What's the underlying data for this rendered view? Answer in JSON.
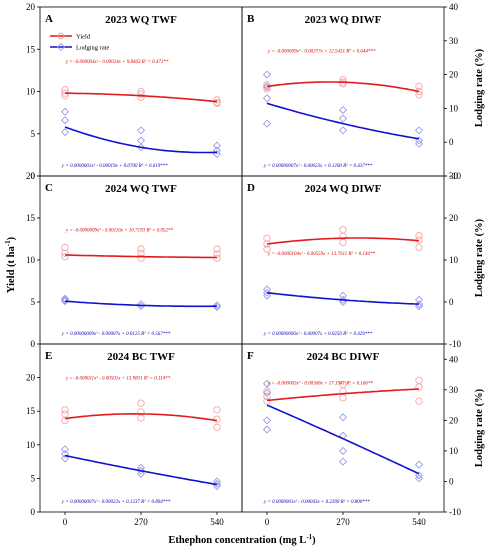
{
  "figure": {
    "xlabel": "Ethephon concentration (mg L",
    "xlabel_sup": "-1",
    "xlabel_tail": ")",
    "ylabel_left": "Yield (t ha",
    "ylabel_left_sup": "-1",
    "ylabel_left_tail": ")",
    "ylabel_right": "Lodging rate (%)",
    "legend": [
      "Yield",
      "Lodging rate"
    ],
    "colors": {
      "yield": "#e31a1c",
      "yield_marker": "#f4a6a6",
      "lodging": "#1010d0",
      "lodging_marker": "#9a9ae8"
    }
  },
  "chart_data": [
    {
      "type": "line",
      "panel": "A",
      "title": "2023  WQ  TWF",
      "x_categories": [
        "0",
        "270",
        "540"
      ],
      "x": [
        0,
        270,
        540
      ],
      "yield_ylim": [
        0,
        20
      ],
      "yield_yticks": [
        "0",
        "5",
        "10",
        "15",
        "20"
      ],
      "lodging_ylim": [
        -10,
        40
      ],
      "lodging_yticks": [],
      "yield_points": [
        [
          0,
          10.2
        ],
        [
          0,
          9.8
        ],
        [
          0,
          9.5
        ],
        [
          270,
          10.0
        ],
        [
          270,
          9.7
        ],
        [
          270,
          9.3
        ],
        [
          540,
          9.0
        ],
        [
          540,
          8.7
        ],
        [
          540,
          8.6
        ]
      ],
      "yield_fit": [
        9.8,
        9.5,
        8.8
      ],
      "lodging_points": [
        [
          0,
          9.0
        ],
        [
          0,
          6.5
        ],
        [
          0,
          3.0
        ],
        [
          270,
          3.5
        ],
        [
          270,
          0.5
        ],
        [
          270,
          -1.5
        ],
        [
          540,
          -1.0
        ],
        [
          540,
          -2.5
        ],
        [
          540,
          -3.5
        ]
      ],
      "lodging_fit": [
        4.5,
        -1.5,
        -3.0
      ],
      "yield_eq": "y = -0.000004x² - 0.00024x + 9.8463   R² = 0.471**",
      "lodging_eq": "y = 0.0000001x² - 0.00019x + 0.0700   R² = 0.619***"
    },
    {
      "type": "line",
      "panel": "B",
      "title": "2023  WQ  DIWF",
      "x_categories": [
        "0",
        "270",
        "540"
      ],
      "x": [
        0,
        270,
        540
      ],
      "yield_ylim": [
        0,
        20
      ],
      "yield_yticks": [],
      "lodging_ylim": [
        -10,
        40
      ],
      "lodging_yticks": [
        "-10",
        "0",
        "10",
        "20",
        "30",
        "40"
      ],
      "yield_points": [
        [
          0,
          10.8
        ],
        [
          0,
          10.5
        ],
        [
          0,
          10.3
        ],
        [
          270,
          11.4
        ],
        [
          270,
          11.1
        ],
        [
          270,
          10.9
        ],
        [
          540,
          10.6
        ],
        [
          540,
          10.0
        ],
        [
          540,
          9.6
        ]
      ],
      "yield_fit": [
        10.6,
        11.1,
        10.0
      ],
      "lodging_points": [
        [
          0,
          20.0
        ],
        [
          0,
          16.5
        ],
        [
          0,
          13.0
        ],
        [
          0,
          5.5
        ],
        [
          270,
          9.5
        ],
        [
          270,
          7.0
        ],
        [
          270,
          3.5
        ],
        [
          540,
          3.5
        ],
        [
          540,
          0.5
        ],
        [
          540,
          -0.5
        ]
      ],
      "lodging_fit": [
        11.5,
        5.5,
        1.0
      ],
      "yield_eq": "y = -0.000009x² - 0.00377x + 12.5431   R² = 0.644***",
      "lodging_eq": "y = 0.00000007x² - 0.00023x + 0.1200   R² = 0.437***"
    },
    {
      "type": "line",
      "panel": "C",
      "title": "2024  WQ  TWF",
      "x_categories": [
        "0",
        "270",
        "540"
      ],
      "x": [
        0,
        270,
        540
      ],
      "yield_ylim": [
        0,
        20
      ],
      "yield_yticks": [
        "0",
        "5",
        "10",
        "15",
        "20"
      ],
      "lodging_ylim": [
        -10,
        30
      ],
      "lodging_yticks": [],
      "yield_points": [
        [
          0,
          11.5
        ],
        [
          0,
          10.8
        ],
        [
          0,
          10.4
        ],
        [
          270,
          11.3
        ],
        [
          270,
          10.8
        ],
        [
          270,
          10.2
        ],
        [
          540,
          11.3
        ],
        [
          540,
          10.7
        ],
        [
          540,
          10.2
        ]
      ],
      "yield_fit": [
        10.6,
        10.4,
        10.3
      ],
      "lodging_points": [
        [
          0,
          0.8
        ],
        [
          0,
          0.5
        ],
        [
          0,
          0.2
        ],
        [
          270,
          -0.5
        ],
        [
          270,
          -1.0
        ],
        [
          540,
          -0.8
        ],
        [
          540,
          -1.2
        ]
      ],
      "lodging_fit": [
        0.2,
        -0.8,
        -1.0
      ],
      "yield_eq": "y = -0.0000009x² - 0.00116x + 10.7193   R² = 0.052**",
      "lodging_eq": "y = 0.00000009x² - 0.00007x + 0.0125   R² = 0.567***"
    },
    {
      "type": "line",
      "panel": "D",
      "title": "2024  WQ  DIWF",
      "x_categories": [
        "0",
        "270",
        "540"
      ],
      "x": [
        0,
        270,
        540
      ],
      "yield_ylim": [
        0,
        20
      ],
      "yield_yticks": [],
      "lodging_ylim": [
        -10,
        30
      ],
      "lodging_yticks": [
        "-10",
        "0",
        "10",
        "20",
        "30"
      ],
      "yield_points": [
        [
          0,
          12.6
        ],
        [
          0,
          11.9
        ],
        [
          0,
          11.3
        ],
        [
          270,
          13.6
        ],
        [
          270,
          12.8
        ],
        [
          270,
          12.1
        ],
        [
          540,
          12.9
        ],
        [
          540,
          12.4
        ],
        [
          540,
          11.5
        ]
      ],
      "yield_fit": [
        11.9,
        12.6,
        12.3
      ],
      "lodging_points": [
        [
          0,
          3.0
        ],
        [
          0,
          2.2
        ],
        [
          0,
          1.5
        ],
        [
          270,
          1.5
        ],
        [
          270,
          0.5
        ],
        [
          270,
          0.0
        ],
        [
          540,
          0.5
        ],
        [
          540,
          -0.5
        ],
        [
          540,
          -1.0
        ]
      ],
      "lodging_fit": [
        2.2,
        0.5,
        -0.5
      ],
      "yield_eq": "y = -0.0000104x² - 0.00559x + 13.7611   R² = 0.146**",
      "lodging_eq": "y = 0.00000006x² - 0.00007x + 0.0250   R² = 0.429***"
    },
    {
      "type": "line",
      "panel": "E",
      "title": "2024  BC  TWF",
      "x_categories": [
        "0",
        "270",
        "540"
      ],
      "x": [
        0,
        270,
        540
      ],
      "yield_ylim": [
        0,
        25
      ],
      "yield_yticks": [
        "0",
        "5",
        "10",
        "15",
        "20"
      ],
      "lodging_ylim": [
        -10,
        45
      ],
      "lodging_yticks": [],
      "yield_points": [
        [
          0,
          15.2
        ],
        [
          0,
          14.6
        ],
        [
          0,
          13.6
        ],
        [
          270,
          16.2
        ],
        [
          270,
          14.9
        ],
        [
          270,
          14.0
        ],
        [
          540,
          15.2
        ],
        [
          540,
          13.8
        ],
        [
          540,
          12.6
        ]
      ],
      "yield_fit": [
        13.9,
        14.6,
        13.6
      ],
      "lodging_points": [
        [
          0,
          10.5
        ],
        [
          0,
          9.0
        ],
        [
          0,
          7.5
        ],
        [
          270,
          4.5
        ],
        [
          270,
          3.5
        ],
        [
          270,
          2.5
        ],
        [
          540,
          0.0
        ],
        [
          540,
          -0.8
        ],
        [
          540,
          -1.5
        ]
      ],
      "lodging_fit": [
        8.5,
        3.5,
        -1.0
      ],
      "yield_eq": "y = -0.000011x² - 0.00501x + 13.9831   R² = 0.114**",
      "lodging_eq": "y = 0.00000007x² - 0.00022x + 0.1237   R² = 0.894***"
    },
    {
      "type": "line",
      "panel": "F",
      "title": "2024  BC  DIWF",
      "x_categories": [
        "0",
        "270",
        "540"
      ],
      "x": [
        0,
        270,
        540
      ],
      "yield_ylim": [
        0,
        25
      ],
      "yield_yticks": [],
      "lodging_ylim": [
        -10,
        45
      ],
      "lodging_yticks": [
        "-10",
        "0",
        "10",
        "20",
        "30",
        "40"
      ],
      "yield_points": [
        [
          0,
          18.0
        ],
        [
          0,
          17.2
        ],
        [
          0,
          16.5
        ],
        [
          270,
          19.0
        ],
        [
          270,
          18.0
        ],
        [
          270,
          17.0
        ],
        [
          540,
          19.6
        ],
        [
          540,
          18.6
        ],
        [
          540,
          16.5
        ]
      ],
      "yield_fit": [
        16.6,
        17.6,
        18.3
      ],
      "lodging_points": [
        [
          0,
          32.0
        ],
        [
          0,
          29.0
        ],
        [
          0,
          20.0
        ],
        [
          0,
          17.0
        ],
        [
          270,
          21.0
        ],
        [
          270,
          15.0
        ],
        [
          270,
          10.0
        ],
        [
          270,
          6.5
        ],
        [
          540,
          5.5
        ],
        [
          540,
          2.0
        ],
        [
          540,
          1.0
        ]
      ],
      "lodging_fit": [
        25.0,
        14.0,
        2.5
      ],
      "yield_eq": "y = -0.000003x² - 0.00368x + 17.1941   R² = 0.166**",
      "lodging_eq": "y = 0.0000001x² - 0.00043x + 0.2399   R² = 0.800***"
    }
  ]
}
